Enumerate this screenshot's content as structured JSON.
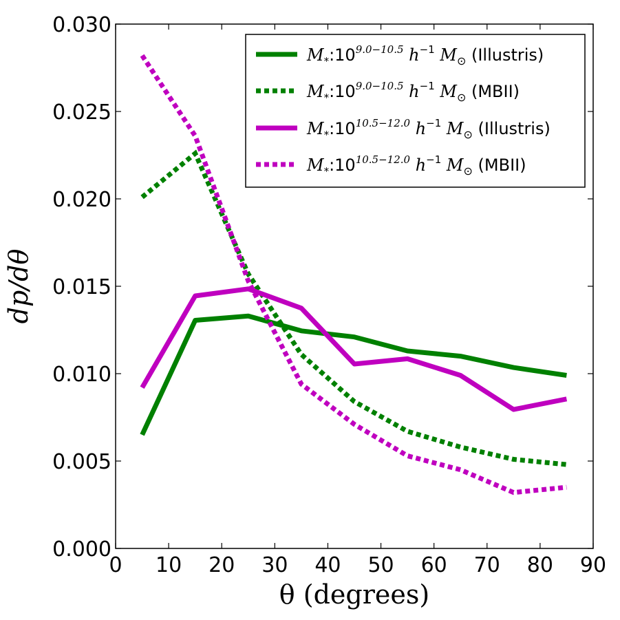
{
  "chart_data": {
    "type": "line",
    "title": "",
    "xlabel": "θ (degrees)",
    "ylabel": "dp/dθ",
    "xlim": [
      0,
      90
    ],
    "ylim": [
      0,
      0.03
    ],
    "xticks": [
      0,
      10,
      20,
      30,
      40,
      50,
      60,
      70,
      80,
      90
    ],
    "xtick_labels": [
      "0",
      "10",
      "20",
      "30",
      "40",
      "50",
      "60",
      "70",
      "80",
      "90"
    ],
    "yticks": [
      0,
      0.005,
      0.01,
      0.015,
      0.02,
      0.025,
      0.03
    ],
    "ytick_labels": [
      "0.000",
      "0.005",
      "0.010",
      "0.015",
      "0.020",
      "0.025",
      "0.030"
    ],
    "grid": false,
    "legend_position": "top-right",
    "x": [
      5,
      15,
      25,
      35,
      45,
      55,
      65,
      75,
      85
    ],
    "series": [
      {
        "name": "M*:10^(9.0–10.5) h^-1 M⊙ (Illustris)",
        "legend_math": "M",
        "legend_sub": "*",
        "legend_base": ":10",
        "legend_exp": "9.0−10.5",
        "legend_h": "h",
        "legend_h_exp": "−1",
        "legend_m": "M",
        "legend_sun": "⊙",
        "legend_suffix": "(Illustris)",
        "color": "#008000",
        "style": "solid",
        "values": [
          0.0065,
          0.01305,
          0.0133,
          0.01245,
          0.0121,
          0.0113,
          0.011,
          0.01035,
          0.0099
        ]
      },
      {
        "name": "M*:10^(9.0–10.5) h^-1 M⊙ (MBII)",
        "legend_math": "M",
        "legend_sub": "*",
        "legend_base": ":10",
        "legend_exp": "9.0−10.5",
        "legend_h": "h",
        "legend_h_exp": "−1",
        "legend_m": "M",
        "legend_sun": "⊙",
        "legend_suffix": "(MBII)",
        "color": "#008000",
        "style": "dotted",
        "values": [
          0.0201,
          0.0226,
          0.0157,
          0.0111,
          0.0084,
          0.0067,
          0.0058,
          0.0051,
          0.0048
        ]
      },
      {
        "name": "M*:10^(10.5–12.0) h^-1 M⊙ (Illustris)",
        "legend_math": "M",
        "legend_sub": "*",
        "legend_base": ":10",
        "legend_exp": "10.5−12.0",
        "legend_h": "h",
        "legend_h_exp": "−1",
        "legend_m": "M",
        "legend_sun": "⊙",
        "legend_suffix": "(Illustris)",
        "color": "#BF00BF",
        "style": "solid",
        "values": [
          0.0092,
          0.01445,
          0.01485,
          0.01375,
          0.01055,
          0.01085,
          0.0099,
          0.00795,
          0.00855
        ]
      },
      {
        "name": "M*:10^(10.5–12.0) h^-1 M⊙ (MBII)",
        "legend_math": "M",
        "legend_sub": "*",
        "legend_base": ":10",
        "legend_exp": "10.5−12.0",
        "legend_h": "h",
        "legend_h_exp": "−1",
        "legend_m": "M",
        "legend_sun": "⊙",
        "legend_suffix": "(MBII)",
        "color": "#BF00BF",
        "style": "dotted",
        "values": [
          0.0282,
          0.0236,
          0.0153,
          0.0094,
          0.0071,
          0.0053,
          0.0045,
          0.0032,
          0.0035
        ]
      }
    ]
  }
}
